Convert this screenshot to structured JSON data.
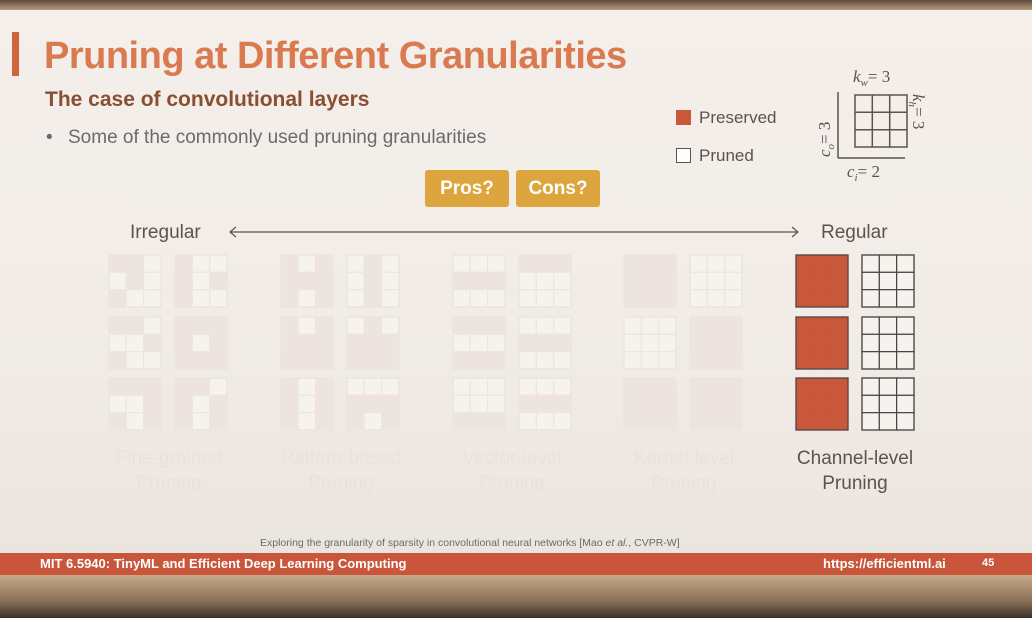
{
  "slide": {
    "title": "Pruning at Different Granularities",
    "subtitle": "The case of convolutional layers",
    "bullet": "Some of the commonly used pruning granularities"
  },
  "legend": {
    "preserved": "Preserved",
    "pruned": "Pruned"
  },
  "kernel_diagram": {
    "kw": "k",
    "kw_sub": "w",
    "kw_val": "= 3",
    "kh": "k",
    "kh_sub": "h",
    "kh_val": "= 3",
    "co": "c",
    "co_sub": "o",
    "co_val": "= 3",
    "ci": "c",
    "ci_sub": "i",
    "ci_val": "= 2"
  },
  "buttons": {
    "pros": "Pros?",
    "cons": "Cons?"
  },
  "axis": {
    "left": "Irregular",
    "right": "Regular"
  },
  "columns": [
    {
      "line1": "Fine-grained",
      "line2": "Pruning",
      "active": false
    },
    {
      "line1": "Pattern-based",
      "line2": "Pruning",
      "active": false
    },
    {
      "line1": "Vector-level",
      "line2": "Pruning",
      "active": false
    },
    {
      "line1": "Kernel-level",
      "line2": "Pruning",
      "active": false
    },
    {
      "line1": "Channel-level",
      "line2": "Pruning",
      "active": true
    }
  ],
  "grid_patterns": [
    [
      [
        "110",
        "010",
        "100"
      ],
      [
        "100",
        "101",
        "100"
      ],
      [
        "110",
        "001",
        "100"
      ],
      [
        "111",
        "101",
        "111"
      ],
      [
        "111",
        "001",
        "101"
      ],
      [
        "110",
        "101",
        "101"
      ]
    ],
    [
      [
        "101",
        "111",
        "101"
      ],
      [
        "010",
        "010",
        "010"
      ],
      [
        "101",
        "111",
        "111"
      ],
      [
        "010",
        "111",
        "111"
      ],
      [
        "101",
        "101",
        "101"
      ],
      [
        "000",
        "111",
        "101"
      ]
    ],
    [
      [
        "000",
        "111",
        "000"
      ],
      [
        "111",
        "000",
        "000"
      ],
      [
        "111",
        "000",
        "111"
      ],
      [
        "000",
        "111",
        "000"
      ],
      [
        "000",
        "000",
        "111"
      ],
      [
        "000",
        "111",
        "000"
      ]
    ],
    [
      [
        "111",
        "111",
        "111"
      ],
      [
        "000",
        "000",
        "000"
      ],
      [
        "000",
        "000",
        "000"
      ],
      [
        "111",
        "111",
        "111"
      ],
      [
        "111",
        "111",
        "111"
      ],
      [
        "111",
        "111",
        "111"
      ]
    ],
    [
      [
        "111",
        "111",
        "111"
      ],
      [
        "000",
        "000",
        "000"
      ],
      [
        "111",
        "111",
        "111"
      ],
      [
        "000",
        "000",
        "000"
      ],
      [
        "111",
        "111",
        "111"
      ],
      [
        "000",
        "000",
        "000"
      ]
    ]
  ],
  "colors": {
    "preserved": "#c9573a",
    "faded_preserved": "#eee4df",
    "accent": "#d97a50",
    "button": "#dca53e",
    "footer": "#c9563a"
  },
  "citation": {
    "text": "Exploring the granularity of sparsity in convolutional neural networks [Mao",
    "etal": "et al.",
    "venue": ", CVPR-W]"
  },
  "footer": {
    "course": "MIT 6.5940: TinyML and Efficient Deep Learning Computing",
    "url": "https://efficientml.ai",
    "page": "45"
  }
}
